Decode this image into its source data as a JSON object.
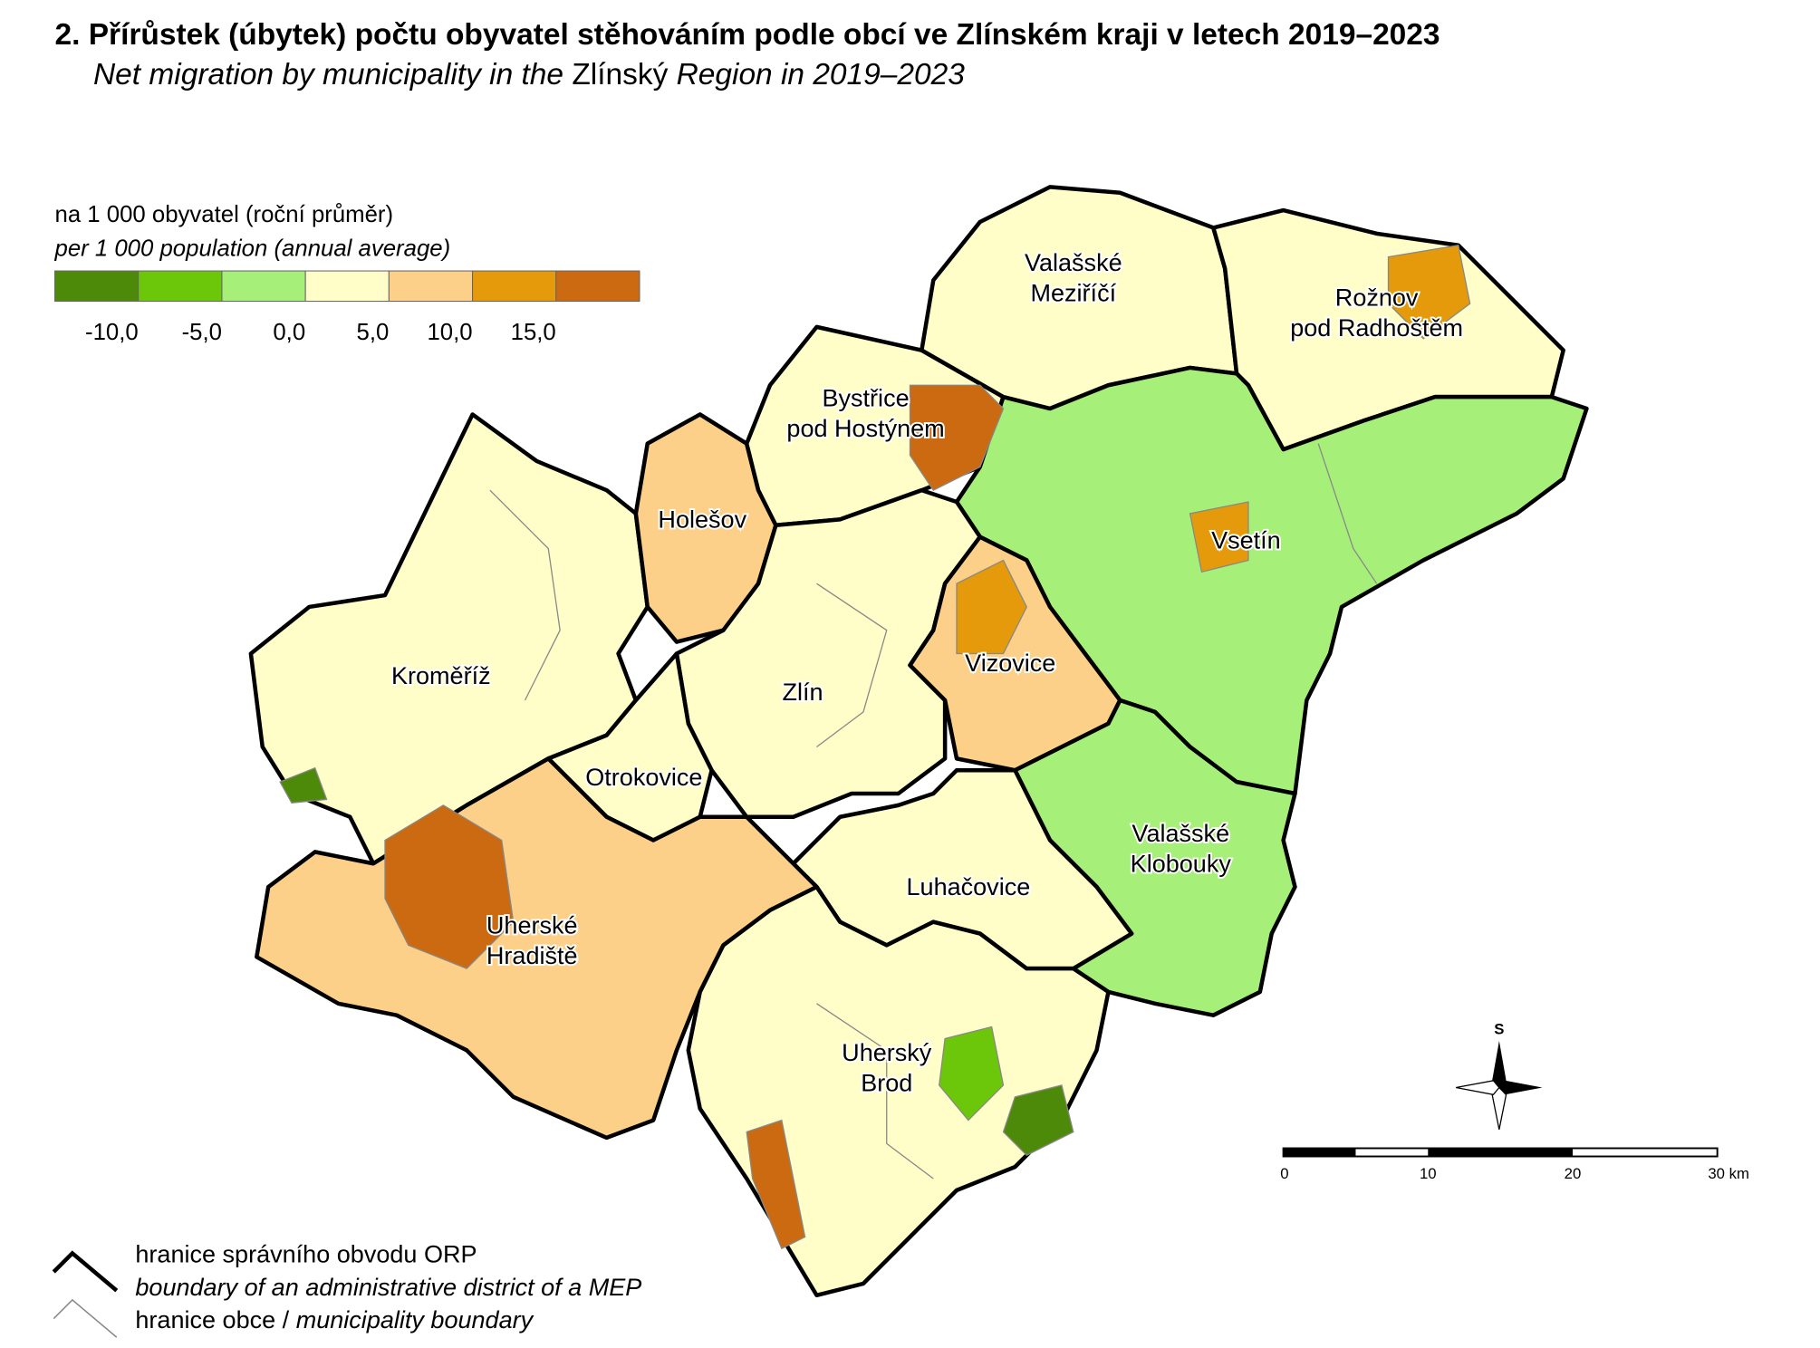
{
  "header": {
    "title": "2. Přírůstek (úbytek) počtu obyvatel stěhováním podle obcí ve Zlínském kraji v letech 2019–2023",
    "subtitle_parts": [
      "Net migration by municipality in the ",
      "Zlínský",
      " Region in 2019–2023"
    ]
  },
  "legend": {
    "title": "na 1 000 obyvatel (roční průměr)",
    "subtitle": "per 1 000 population (annual average)",
    "classes": [
      "#4e8a0a",
      "#6cc70a",
      "#a6f07a",
      "#fffdc8",
      "#fdd08a",
      "#e49a0a",
      "#cc6a12"
    ],
    "tick_labels": [
      "-10,0",
      "-5,0",
      "0,0",
      "5,0",
      "10,0",
      "15,0"
    ]
  },
  "districts": [
    {
      "lines": [
        "Valašské",
        "Meziříčí"
      ]
    },
    {
      "lines": [
        "Rožnov",
        "pod Radhoštěm"
      ]
    },
    {
      "lines": [
        "Bystřice",
        "pod Hostýnem"
      ]
    },
    {
      "lines": [
        "Holešov"
      ]
    },
    {
      "lines": [
        "Vsetín"
      ]
    },
    {
      "lines": [
        "Kroměříž"
      ]
    },
    {
      "lines": [
        "Vizovice"
      ]
    },
    {
      "lines": [
        "Zlín"
      ]
    },
    {
      "lines": [
        "Otrokovice"
      ]
    },
    {
      "lines": [
        "Valašské",
        "Klobouky"
      ]
    },
    {
      "lines": [
        "Luhačovice"
      ]
    },
    {
      "lines": [
        "Uherské",
        "Hradiště"
      ]
    },
    {
      "lines": [
        "Uherský",
        "Brod"
      ]
    }
  ],
  "north_arrow": "S",
  "scale_bar": [
    "0",
    "10",
    "20",
    "30 km"
  ],
  "boundary_legend": {
    "orp": "hranice správního obvodu ORP",
    "orp_en": "boundary of an administrative district of a MEP",
    "municipality": "hranice obce / ",
    "municipality_en": "municipality boundary"
  }
}
